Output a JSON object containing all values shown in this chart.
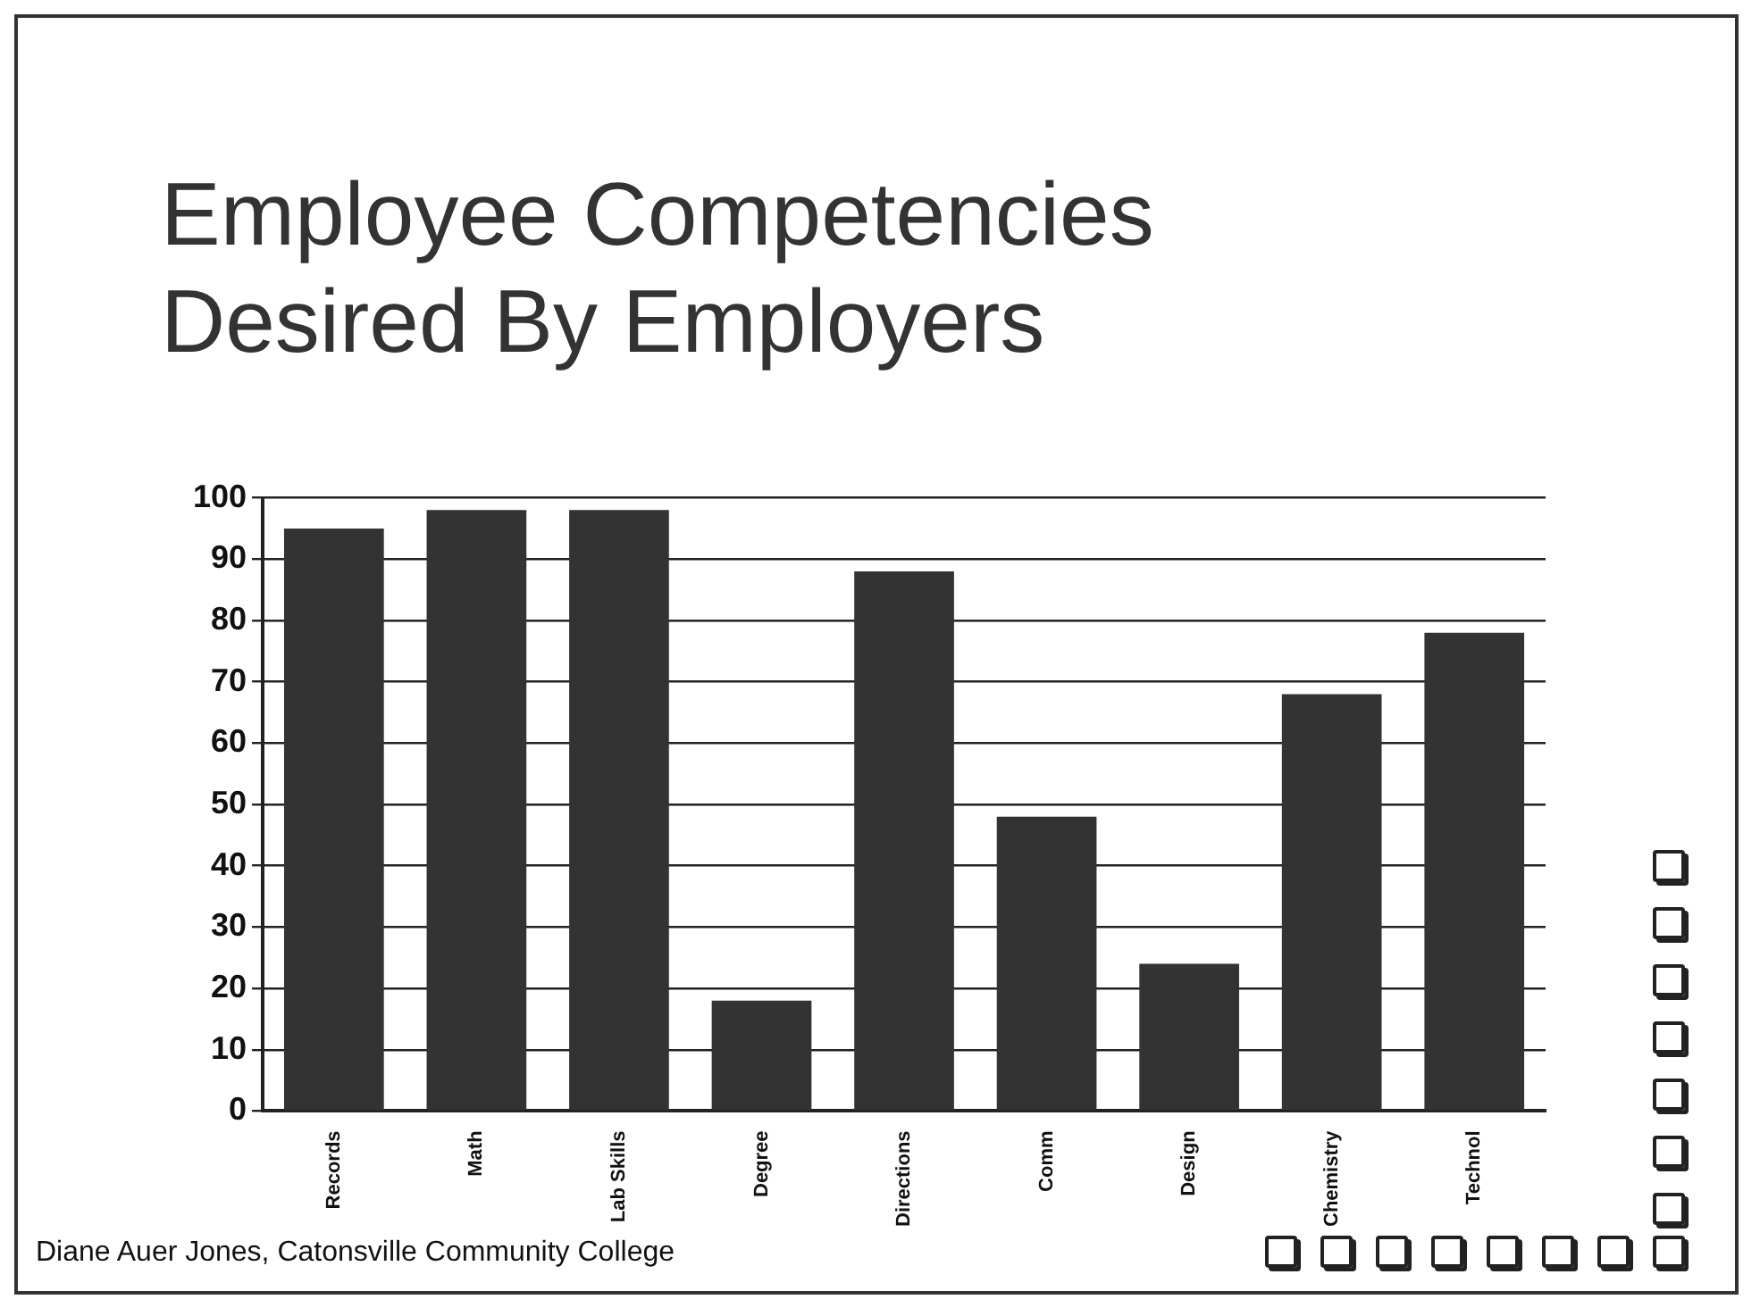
{
  "chart_data": {
    "type": "bar",
    "title": "Employee Competencies\nDesired By Employers",
    "categories": [
      "Records",
      "Math",
      "Lab Skills",
      "Degree",
      "Directions",
      "Comm",
      "Design",
      "Chemistry",
      "Technol"
    ],
    "values": [
      95,
      98,
      98,
      18,
      88,
      48,
      24,
      68,
      78
    ],
    "color": "#333333",
    "ylim": [
      0,
      100
    ],
    "yticks": [
      0,
      10,
      20,
      30,
      40,
      50,
      60,
      70,
      80,
      90,
      100
    ],
    "grid": "y",
    "annotations": [
      "Diane Auer Jones, Catonsville Community College"
    ]
  }
}
